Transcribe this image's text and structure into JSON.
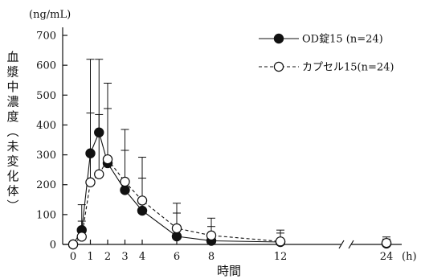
{
  "chart_data": {
    "type": "line",
    "title": "",
    "ylabel_chars": [
      "血",
      "漿",
      "中",
      "濃",
      "度",
      "︵",
      "未",
      "変",
      "化",
      "体",
      "︶"
    ],
    "y_unit": "(ng/mL)",
    "xlabel": "時間",
    "x_unit": "(h)",
    "ylim": [
      0,
      700
    ],
    "y_ticks": [
      "0",
      "100",
      "200",
      "300",
      "400",
      "500",
      "600",
      "700"
    ],
    "x_ticks": [
      "0",
      "1",
      "2",
      "3",
      "4",
      "6",
      "8",
      "12",
      "24"
    ],
    "x_tick_values": [
      0,
      1,
      2,
      3,
      4,
      6,
      8,
      12,
      24
    ],
    "axis_break_between": [
      12,
      24
    ],
    "grid": false,
    "legend_position": "top-right",
    "series": [
      {
        "name": "OD錠15 (n=24)",
        "marker": "filled-circle",
        "line": "solid",
        "x": [
          0,
          0.5,
          1,
          1.5,
          2,
          3,
          4,
          6,
          8,
          12,
          24
        ],
        "y": [
          0,
          48,
          305,
          375,
          272,
          182,
          113,
          27,
          12,
          8,
          3
        ],
        "err_upper": [
          0,
          78,
          440,
          620,
          455,
          315,
          222,
          105,
          60,
          38,
          18
        ]
      },
      {
        "name": "カプセル15(n=24)",
        "marker": "open-circle",
        "line": "dashed",
        "x": [
          0,
          0.5,
          1,
          1.5,
          2,
          3,
          4,
          6,
          8,
          12,
          24
        ],
        "y": [
          0,
          26,
          208,
          235,
          285,
          210,
          147,
          54,
          30,
          10,
          5
        ],
        "err_upper": [
          0,
          133,
          620,
          435,
          540,
          385,
          292,
          138,
          88,
          48,
          25
        ]
      }
    ]
  }
}
